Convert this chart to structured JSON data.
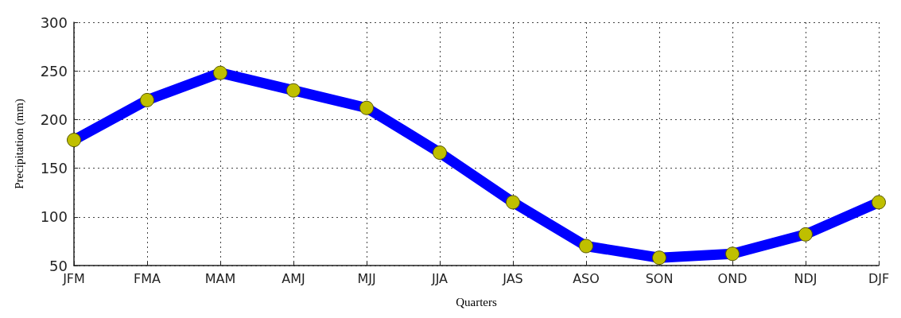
{
  "chart_data": {
    "type": "line",
    "xlabel": "Quarters",
    "ylabel": "Precipitation (mm)",
    "categories": [
      "JFM",
      "FMA",
      "MAM",
      "AMJ",
      "MJJ",
      "JJA",
      "JAS",
      "ASO",
      "SON",
      "OND",
      "NDJ",
      "DJF"
    ],
    "series": [
      {
        "color": "#0000ff",
        "colors": [
          "#bfbf00",
          "#bfbf00",
          "#bfbf00",
          "#bfbf00",
          "#bfbf00",
          "#bfbf00",
          "#bfbf00",
          "#bfbf00",
          "#bfbf00",
          "#bfbf00",
          "#bfbf00",
          "#bfbf00"
        ],
        "values": [
          179,
          220,
          248,
          230,
          212,
          166,
          115,
          70,
          58,
          62,
          82,
          115
        ]
      }
    ],
    "ylim": [
      50,
      300
    ],
    "yticks": [
      50,
      100,
      150,
      200,
      250,
      300
    ],
    "grid": true,
    "marker": "circle",
    "line_style": "solid"
  }
}
